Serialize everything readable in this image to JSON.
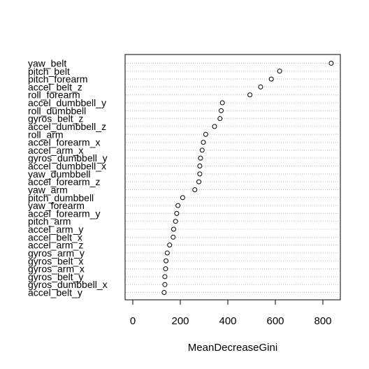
{
  "chart_data": {
    "type": "scatter",
    "title": "",
    "xlabel": "MeanDecreaseGini",
    "ylabel": "",
    "xlim": [
      -20,
      860
    ],
    "xticks": [
      0,
      200,
      400,
      600,
      800
    ],
    "grid": "dotted horizontal guide lines",
    "categories": [
      "yaw_belt",
      "pitch_belt",
      "pitch_forearm",
      "accel_belt_z",
      "roll_forearm",
      "accel_dumbbell_y",
      "roll_dumbbell",
      "gyros_belt_z",
      "accel_dumbbell_z",
      "roll_arm",
      "accel_forearm_x",
      "accel_arm_x",
      "gyros_dumbbell_y",
      "accel_dumbbell_x",
      "yaw_dumbbell",
      "accel_forearm_z",
      "yaw_arm",
      "pitch_dumbbell",
      "yaw_forearm",
      "accel_forearm_y",
      "pitch_arm",
      "accel_arm_y",
      "accel_belt_x",
      "accel_arm_z",
      "gyros_arm_y",
      "gyros_belt_x",
      "gyros_arm_x",
      "gyros_belt_y",
      "gyros_dumbbell_x",
      "accel_belt_y"
    ],
    "values": [
      835,
      618,
      583,
      538,
      493,
      377,
      372,
      367,
      344,
      307,
      297,
      292,
      285,
      282,
      282,
      278,
      261,
      210,
      190,
      185,
      180,
      172,
      170,
      155,
      145,
      140,
      138,
      135,
      135,
      132
    ]
  }
}
